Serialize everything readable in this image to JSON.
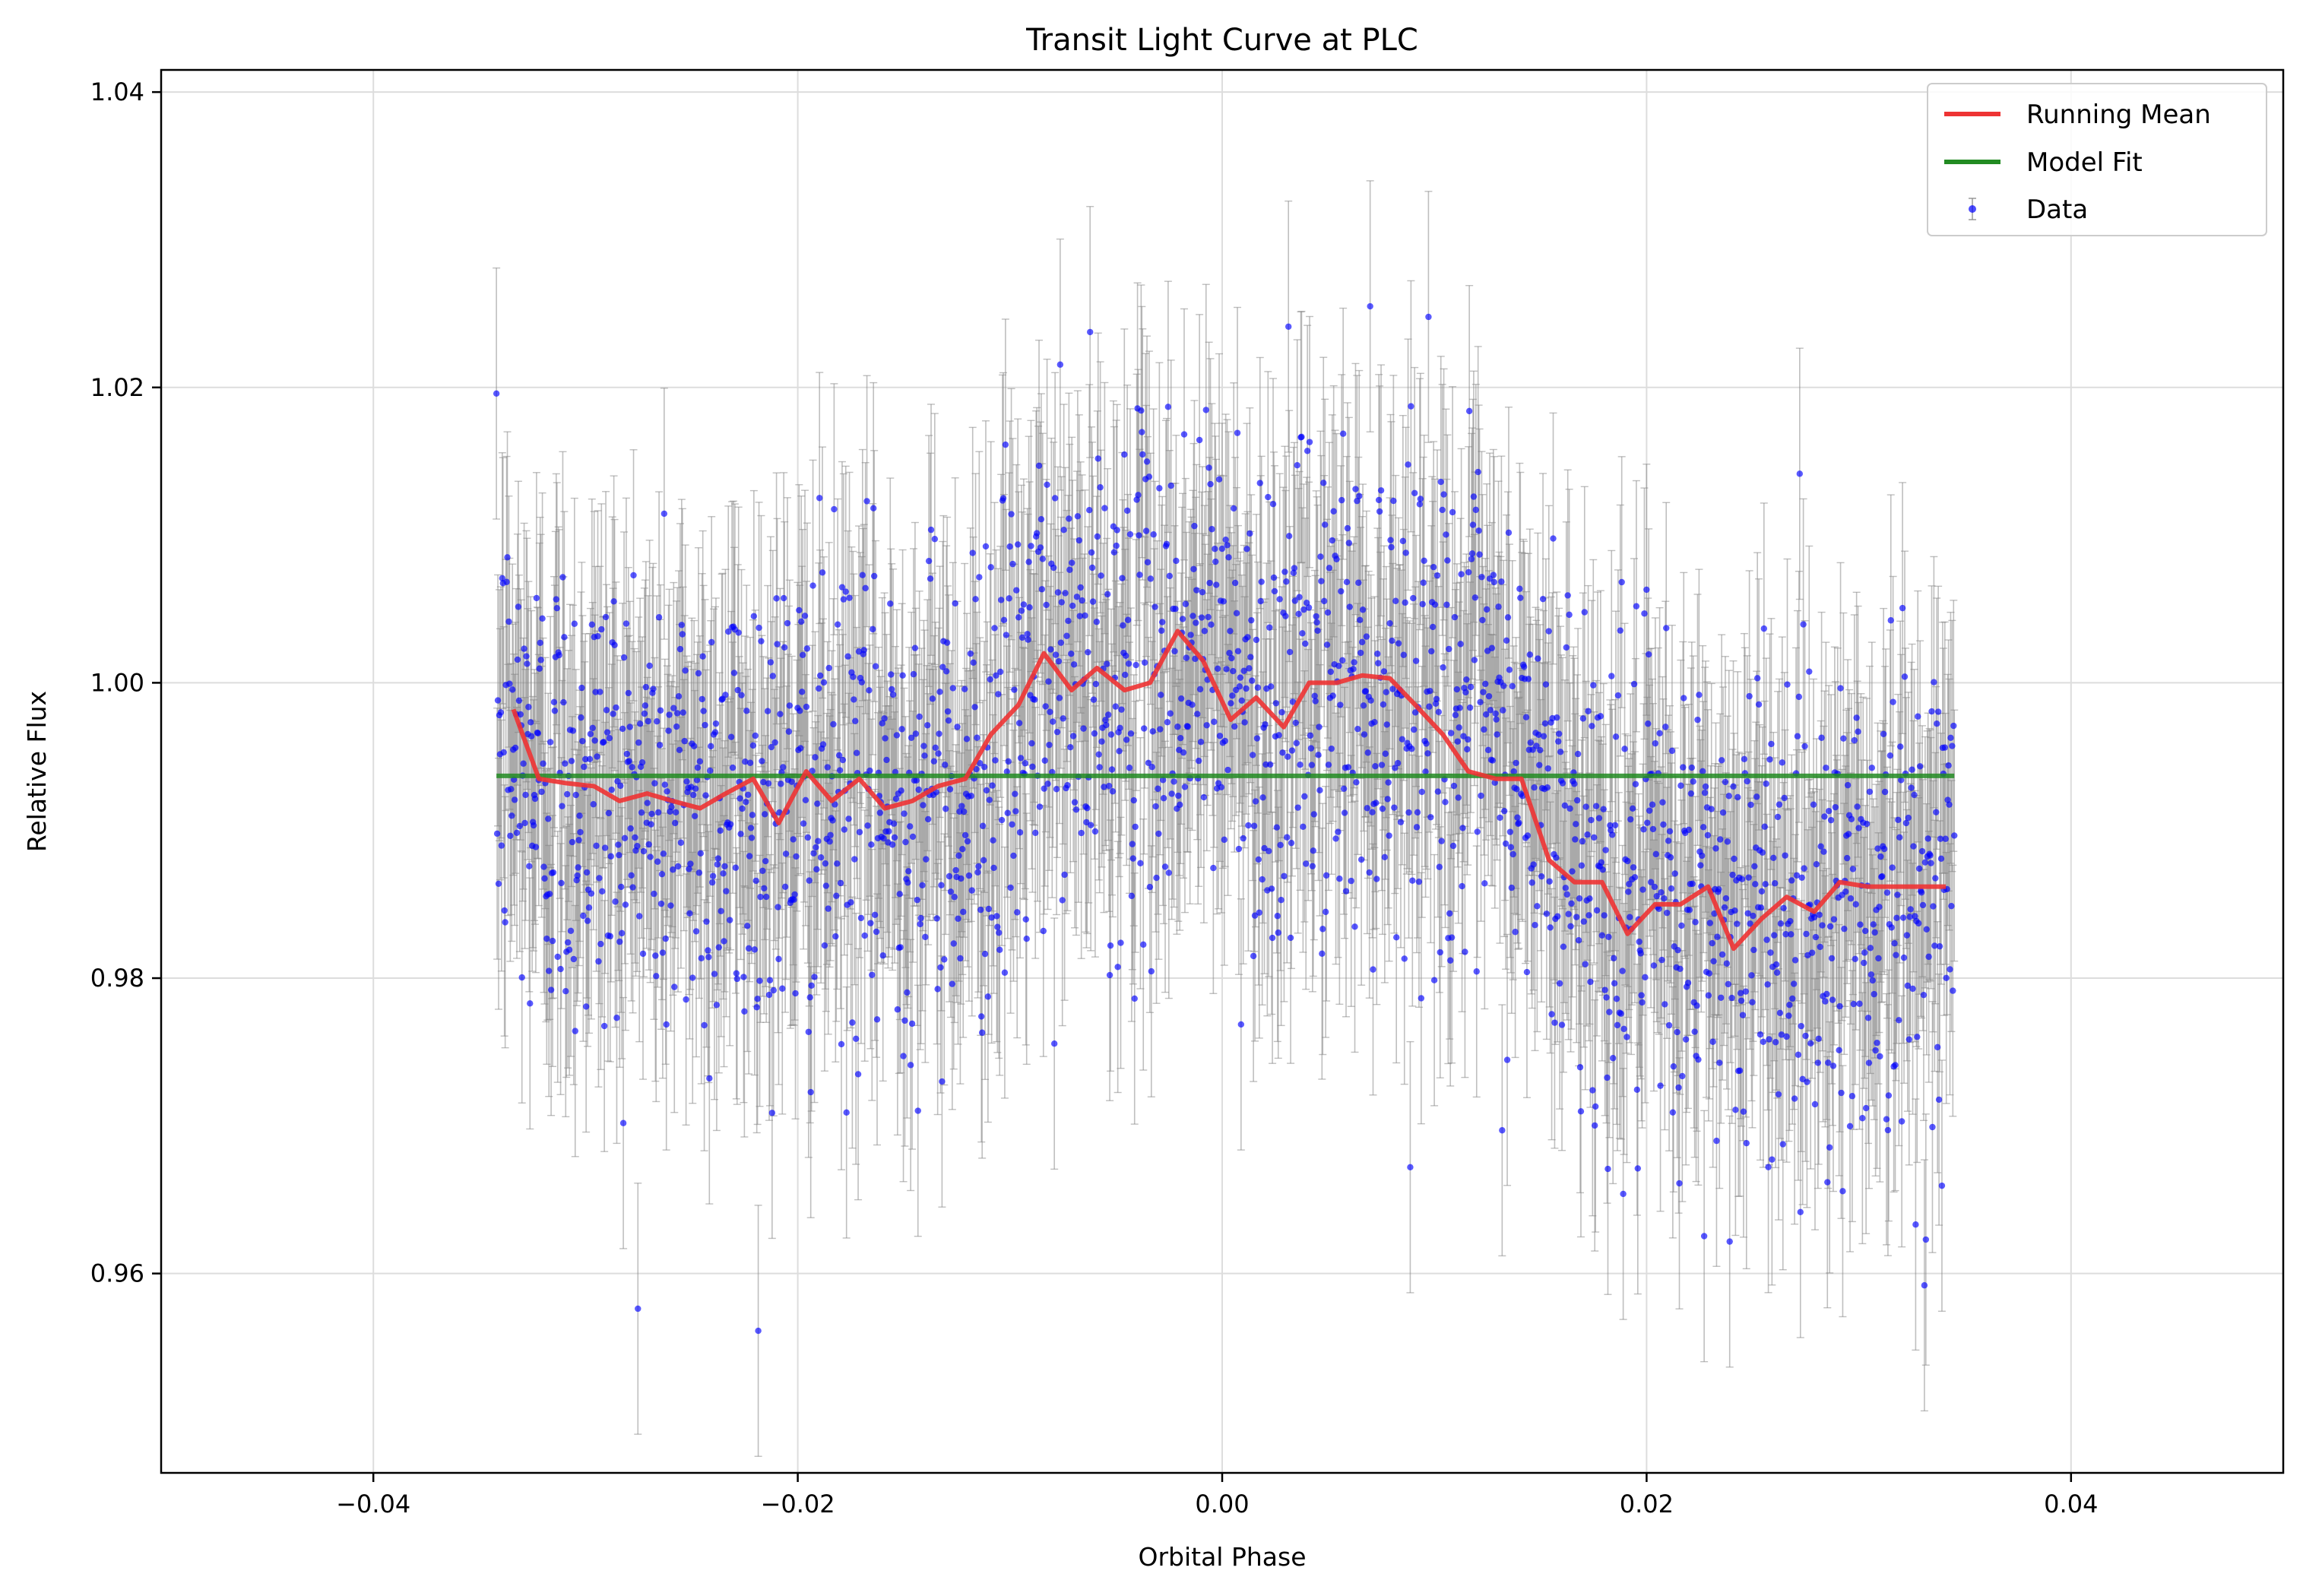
{
  "chart_data": {
    "type": "scatter",
    "title": "Transit Light Curve at PLC",
    "xlabel": "Orbital Phase",
    "ylabel": "Relative Flux",
    "xlim": [
      -0.05,
      0.05
    ],
    "ylim": [
      0.9465,
      1.0415
    ],
    "xticks": [
      -0.04,
      -0.02,
      0.0,
      0.02,
      0.04
    ],
    "xtick_labels": [
      "−0.04",
      "−0.02",
      "0.00",
      "0.02",
      "0.04"
    ],
    "yticks": [
      0.96,
      0.98,
      1.0,
      1.02,
      1.04
    ],
    "ytick_labels": [
      "0.96",
      "0.98",
      "1.00",
      "1.02",
      "1.04"
    ],
    "grid": true,
    "legend": {
      "position": "top-right",
      "entries": [
        "Running Mean",
        "Model Fit",
        "Data"
      ]
    },
    "colors": {
      "data": "#0000ff",
      "errorbar": "#808080",
      "running_mean": "#ee3333",
      "model_fit": "#228b22",
      "grid": "#dddddd"
    },
    "series": [
      {
        "name": "Data",
        "kind": "errorbar-scatter",
        "x_range": [
          -0.0342,
          0.0345
        ],
        "n_points": 2000,
        "error_y": 0.0085,
        "noise_std": 0.0085,
        "profile": [
          [
            -0.034,
            0.996
          ],
          [
            -0.032,
            0.993
          ],
          [
            -0.028,
            0.992
          ],
          [
            -0.024,
            0.9915
          ],
          [
            -0.02,
            0.992
          ],
          [
            -0.016,
            0.992
          ],
          [
            -0.012,
            0.993
          ],
          [
            -0.008,
            1.0
          ],
          [
            -0.004,
            1.0
          ],
          [
            0.0,
            1.002
          ],
          [
            0.002,
            0.998
          ],
          [
            0.006,
            1.0
          ],
          [
            0.01,
            1.0
          ],
          [
            0.014,
            0.994
          ],
          [
            0.018,
            0.987
          ],
          [
            0.022,
            0.984
          ],
          [
            0.026,
            0.985
          ],
          [
            0.03,
            0.985
          ],
          [
            0.034,
            0.986
          ]
        ]
      },
      {
        "name": "Running Mean",
        "kind": "line",
        "x": [
          -0.0334,
          -0.0322,
          -0.0309,
          -0.0296,
          -0.0284,
          -0.0271,
          -0.0259,
          -0.0246,
          -0.0234,
          -0.0221,
          -0.0209,
          -0.0196,
          -0.0184,
          -0.0171,
          -0.0159,
          -0.0146,
          -0.0134,
          -0.0121,
          -0.0109,
          -0.0096,
          -0.0084,
          -0.0071,
          -0.0059,
          -0.0046,
          -0.0034,
          -0.0021,
          -0.0009,
          0.0004,
          0.0016,
          0.0029,
          0.0041,
          0.0054,
          0.0066,
          0.0079,
          0.0091,
          0.0104,
          0.0116,
          0.0129,
          0.0141,
          0.0154,
          0.0166,
          0.0179,
          0.0191,
          0.0204,
          0.0216,
          0.0229,
          0.0241,
          0.0254,
          0.0266,
          0.0279,
          0.0291,
          0.0304,
          0.0316,
          0.0329,
          0.0341
        ],
        "y": [
          0.9982,
          0.9935,
          0.9932,
          0.993,
          0.992,
          0.9925,
          0.992,
          0.9915,
          0.9925,
          0.9935,
          0.9905,
          0.994,
          0.992,
          0.9935,
          0.9915,
          0.992,
          0.993,
          0.9935,
          0.9965,
          0.9985,
          1.002,
          0.9995,
          1.001,
          0.9995,
          1.0,
          1.0035,
          1.0015,
          0.9975,
          0.999,
          0.997,
          1.0,
          1.0,
          1.0005,
          1.0003,
          0.9985,
          0.9965,
          0.994,
          0.9935,
          0.9935,
          0.988,
          0.9865,
          0.9865,
          0.983,
          0.985,
          0.985,
          0.9862,
          0.982,
          0.984,
          0.9855,
          0.9845,
          0.9865,
          0.9862,
          0.9862,
          0.9862,
          0.9862
        ]
      },
      {
        "name": "Model Fit",
        "kind": "line",
        "x": [
          -0.0342,
          0.0345
        ],
        "y": [
          0.9937,
          0.9937
        ]
      }
    ]
  }
}
